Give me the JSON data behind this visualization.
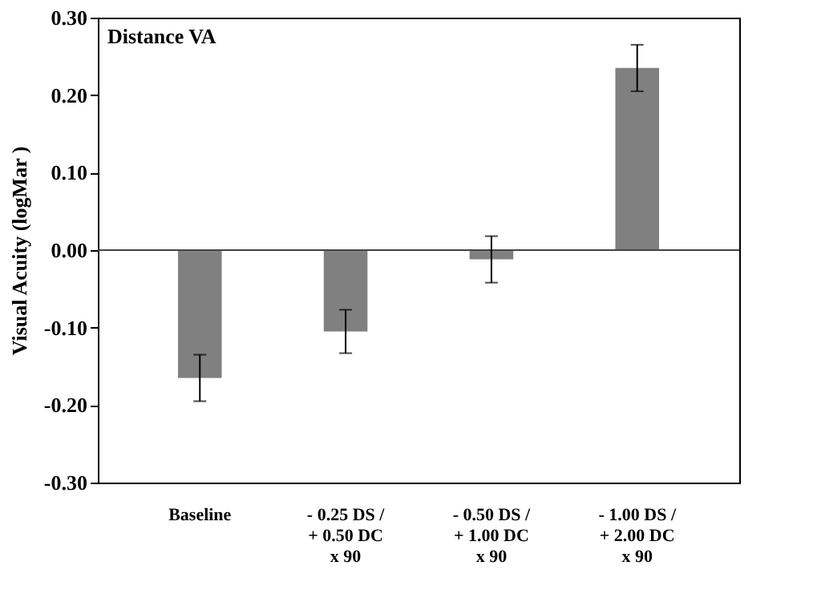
{
  "chart_data": {
    "type": "bar",
    "title": "Distance VA",
    "ylabel": "Visual Acuity (logMar )",
    "categories": [
      "Baseline",
      "- 0.25 DS /\n+ 0.50 DC\nx 90",
      "- 0.50 DS /\n+ 1.00 DC\nx 90",
      "- 1.00 DS /\n+ 2.00 DC\nx 90"
    ],
    "values": [
      -0.165,
      -0.105,
      -0.012,
      0.235
    ],
    "errors": [
      0.03,
      0.028,
      0.03,
      0.03
    ],
    "color": "#808080",
    "ylim": [
      -0.3,
      0.3
    ],
    "yticks": [
      {
        "value": -0.3,
        "label": "-0.30"
      },
      {
        "value": -0.2,
        "label": "-0.20"
      },
      {
        "value": -0.1,
        "label": "-0.10"
      },
      {
        "value": 0,
        "label": "0.00"
      },
      {
        "value": 0.1,
        "label": "0.10"
      },
      {
        "value": 0.2,
        "label": "0.20"
      },
      {
        "value": 0.3,
        "label": "0.30"
      }
    ],
    "ref_lines": [
      {
        "axis": "y",
        "value": 0,
        "color": "#444444"
      }
    ],
    "grid": false
  }
}
